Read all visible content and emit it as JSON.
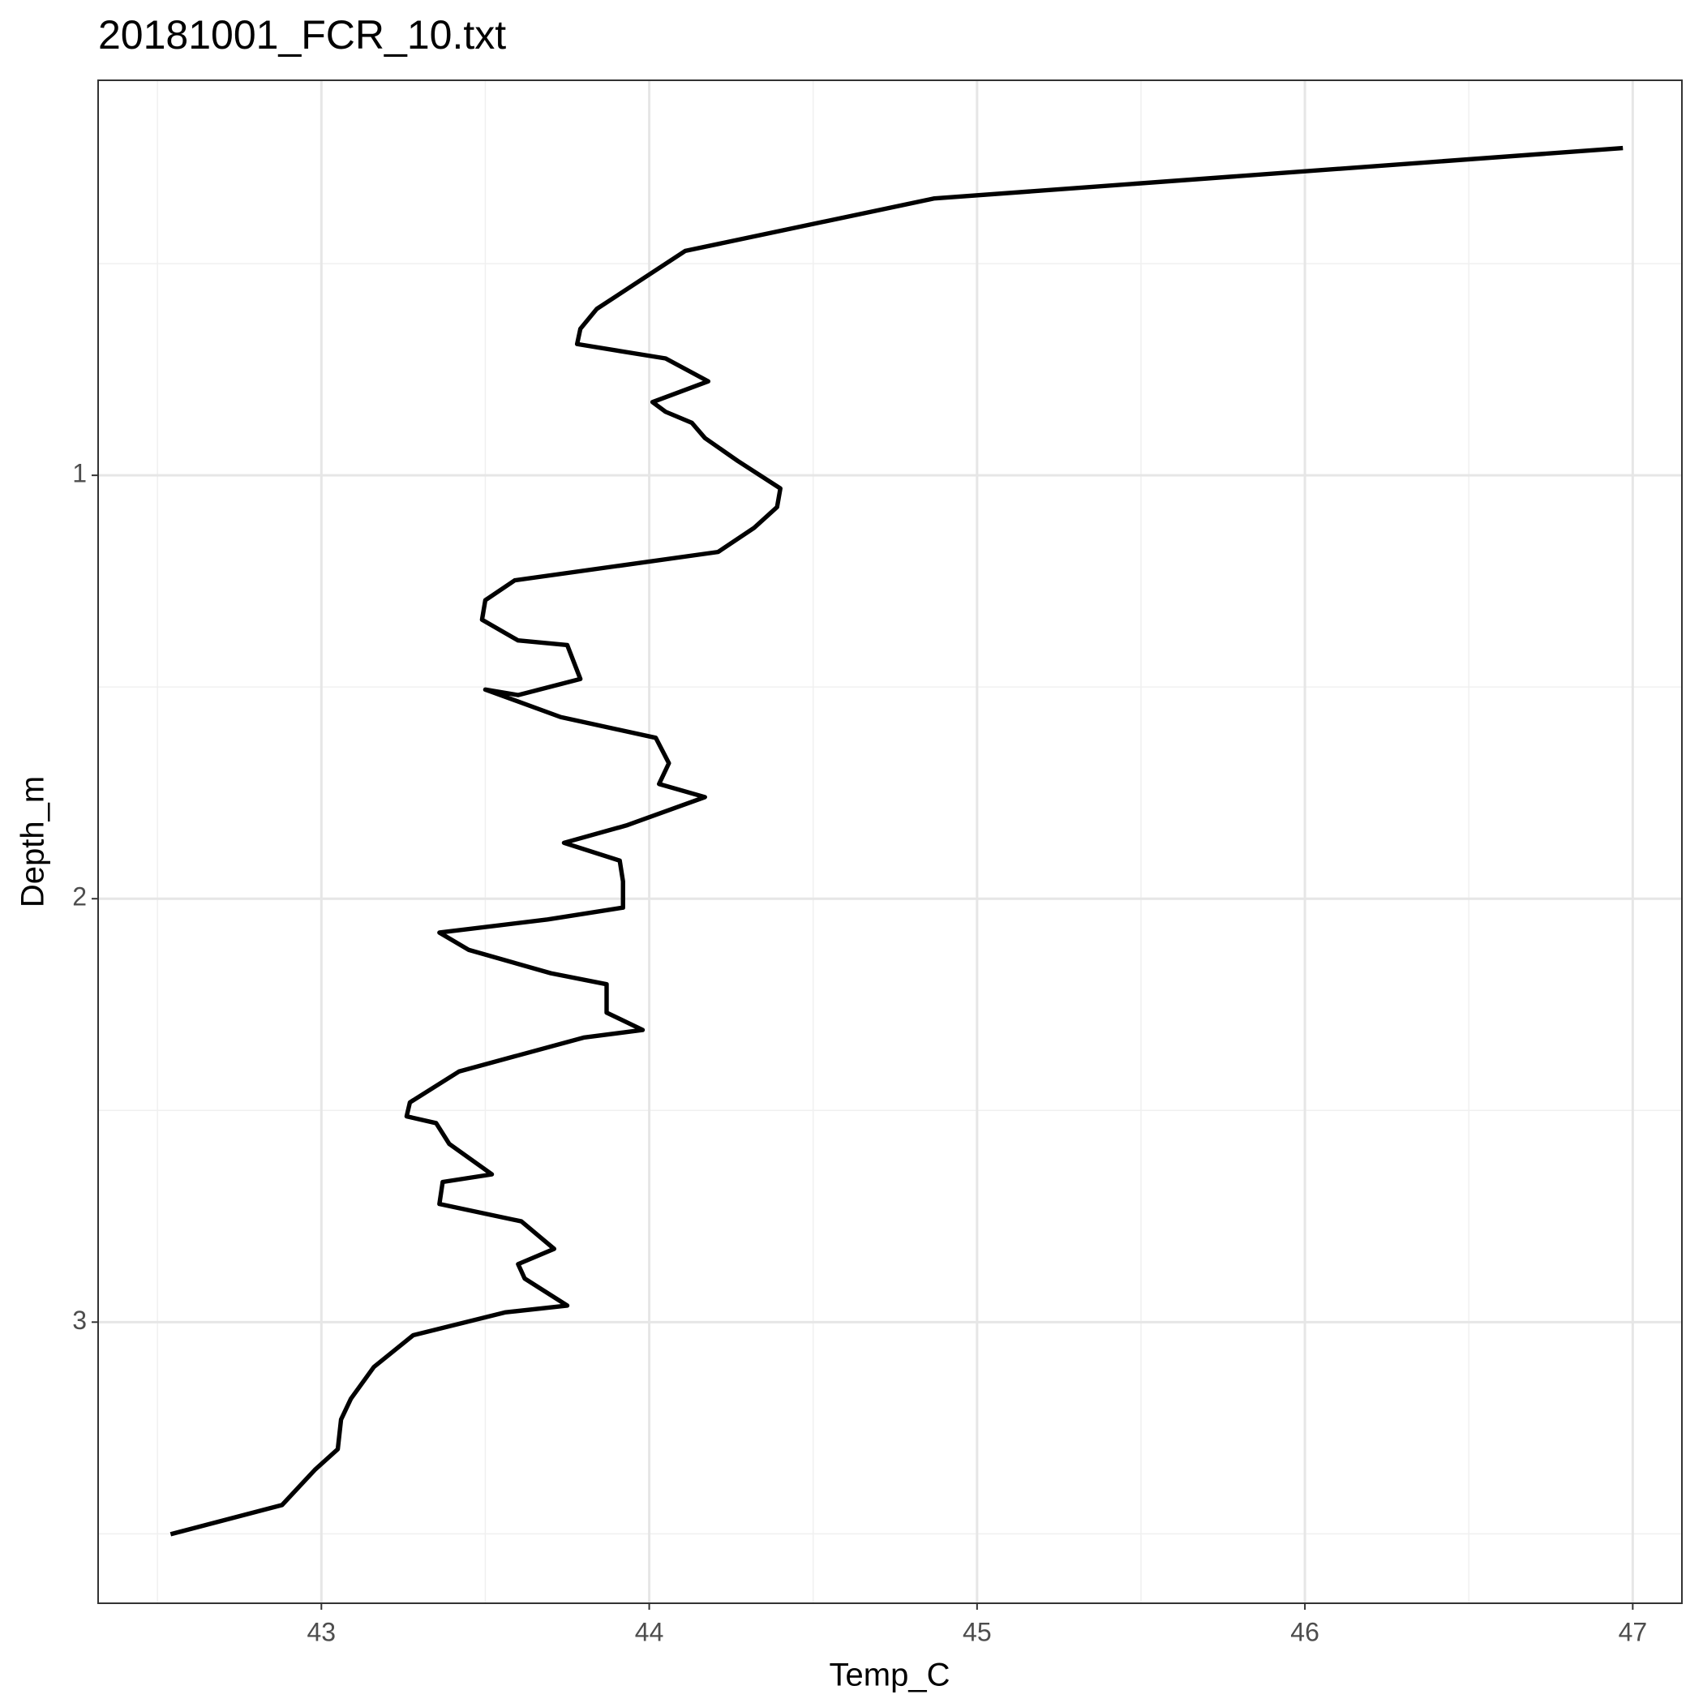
{
  "chart_data": {
    "type": "line",
    "title": "20181001_FCR_10.txt",
    "x_label": "Temp_C",
    "y_label": "Depth_m",
    "xlim": [
      42.319,
      47.15
    ],
    "ylim": [
      0.067,
      3.664
    ],
    "y_reversed": true,
    "xticks": [
      43,
      44,
      45,
      46,
      47
    ],
    "yticks": [
      1,
      2,
      3
    ],
    "minor_xticks": [
      42.5,
      43.5,
      44.5,
      45.5,
      46.5
    ],
    "minor_yticks": [
      0.5,
      1.5,
      2.5,
      3.5
    ],
    "grid": true,
    "series": [
      {
        "color": "#000000",
        "x": [
          46.97,
          44.87,
          44.11,
          43.84,
          43.79,
          43.78,
          44.05,
          44.18,
          44.01,
          44.05,
          44.13,
          44.17,
          44.27,
          44.4,
          44.39,
          44.32,
          44.21,
          43.59,
          43.5,
          43.49,
          43.6,
          43.75,
          43.79,
          43.6,
          43.5,
          43.73,
          44.02,
          44.06,
          44.03,
          44.17,
          43.93,
          43.74,
          43.91,
          43.92,
          43.92,
          43.69,
          43.36,
          43.45,
          43.7,
          43.87,
          43.87,
          43.98,
          43.8,
          43.42,
          43.27,
          43.26,
          43.35,
          43.39,
          43.52,
          43.37,
          43.36,
          43.61,
          43.71,
          43.6,
          43.62,
          43.75,
          43.56,
          43.28,
          43.16,
          43.09,
          43.06,
          43.05,
          42.98,
          42.88,
          42.54
        ],
        "values": [
          0.227,
          0.346,
          0.47,
          0.607,
          0.654,
          0.69,
          0.724,
          0.778,
          0.827,
          0.85,
          0.876,
          0.912,
          0.966,
          1.031,
          1.075,
          1.124,
          1.181,
          1.248,
          1.295,
          1.341,
          1.39,
          1.401,
          1.481,
          1.519,
          1.506,
          1.571,
          1.62,
          1.68,
          1.729,
          1.76,
          1.827,
          1.868,
          1.91,
          1.959,
          2.021,
          2.049,
          2.08,
          2.121,
          2.176,
          2.202,
          2.269,
          2.31,
          2.328,
          2.408,
          2.481,
          2.514,
          2.53,
          2.579,
          2.651,
          2.669,
          2.721,
          2.762,
          2.827,
          2.863,
          2.897,
          2.961,
          2.977,
          3.031,
          3.106,
          3.181,
          3.23,
          3.3,
          3.349,
          3.432,
          3.501
        ]
      }
    ]
  }
}
